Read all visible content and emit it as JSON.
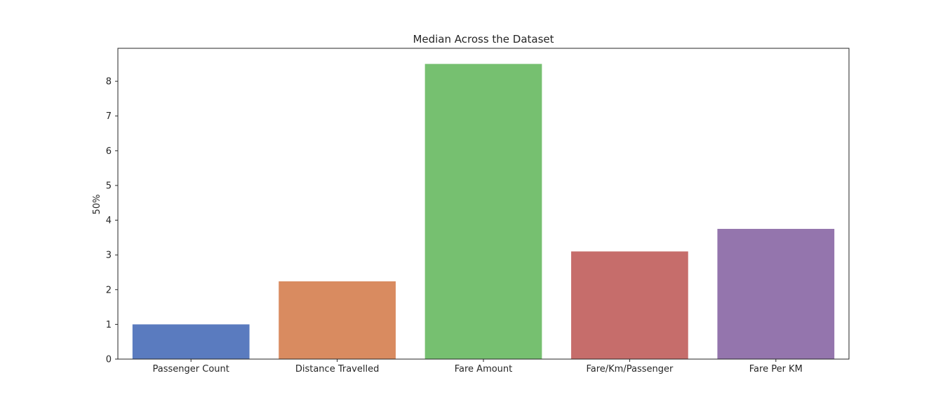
{
  "chart_data": {
    "type": "bar",
    "title": "Median Across the Dataset",
    "xlabel": "",
    "ylabel": "50%",
    "categories": [
      "Passenger Count",
      "Distance Travelled",
      "Fare Amount",
      "Fare/Km/Passenger",
      "Fare Per KM"
    ],
    "values": [
      1.0,
      2.24,
      8.5,
      3.1,
      3.75
    ],
    "colors": [
      "#5a7bbf",
      "#d98b60",
      "#76c070",
      "#c66d6b",
      "#9475ad"
    ],
    "ylim": [
      0,
      8.95
    ],
    "yticks": [
      0,
      1,
      2,
      3,
      4,
      5,
      6,
      7,
      8
    ],
    "grid": false,
    "legend": "none"
  }
}
